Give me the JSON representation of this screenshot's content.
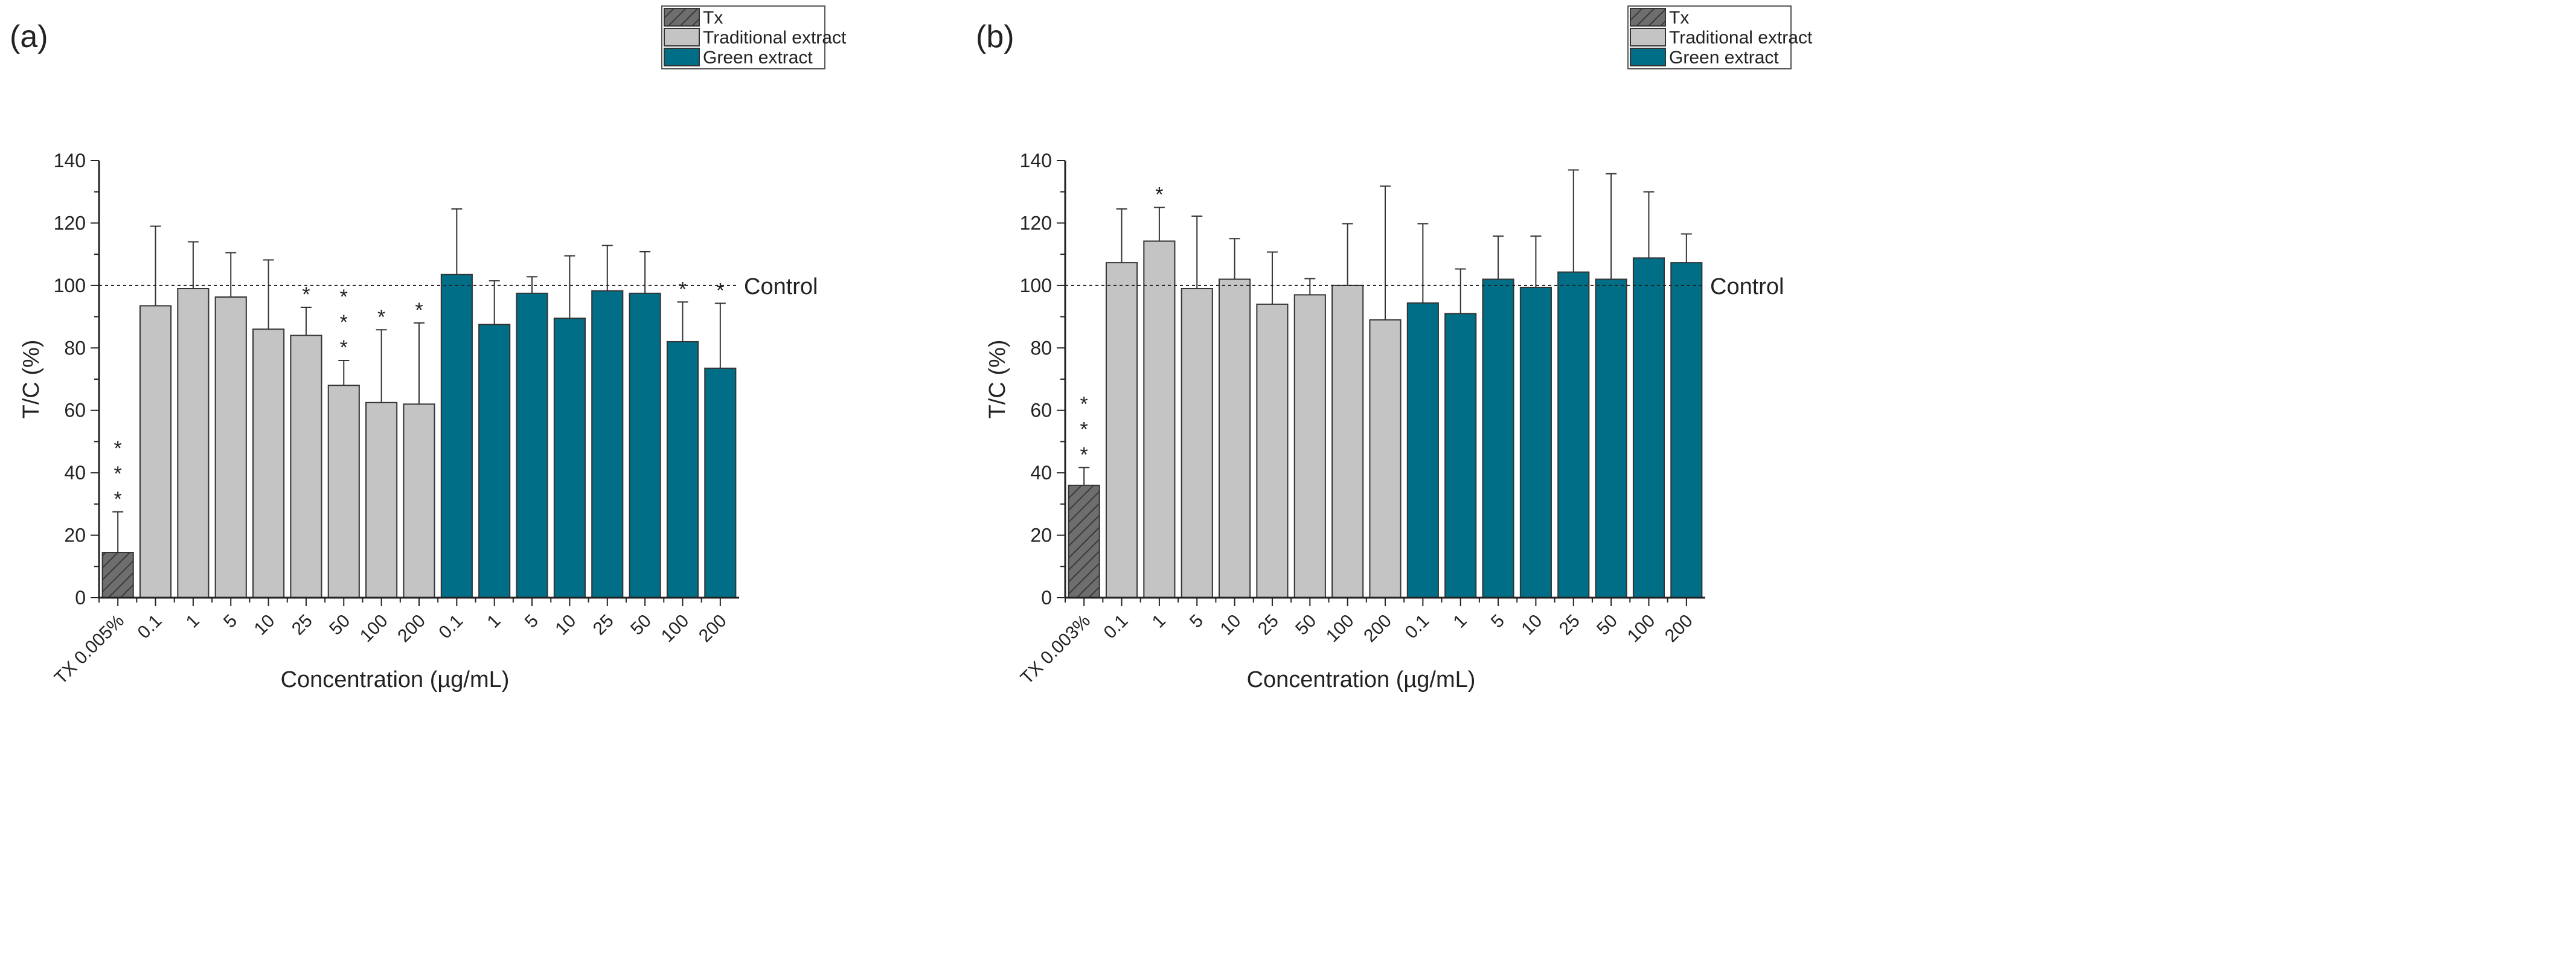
{
  "colors": {
    "tx": "#6e6e6e",
    "traditional": "#c4c4c4",
    "green": "#006e87",
    "axis": "#222222"
  },
  "chart_data": [
    {
      "type": "bar",
      "panel_label": "(a)",
      "xlabel": "Concentration (µg/mL)",
      "ylabel": "T/C (%)",
      "ylim": [
        0,
        140
      ],
      "yticks": [
        "0",
        "20",
        "40",
        "60",
        "80",
        "100",
        "120",
        "140"
      ],
      "reference_line": {
        "value": 100,
        "label": "Control"
      },
      "legend": {
        "position": "top-right",
        "entries": [
          "Tx",
          "Traditional extract",
          "Green extract"
        ]
      },
      "categories": [
        "TX 0.005%",
        "0.1",
        "1",
        "5",
        "10",
        "25",
        "50",
        "100",
        "200",
        "0.1",
        "1",
        "5",
        "10",
        "25",
        "50",
        "100",
        "200"
      ],
      "groups": [
        "tx",
        "traditional",
        "traditional",
        "traditional",
        "traditional",
        "traditional",
        "traditional",
        "traditional",
        "traditional",
        "green",
        "green",
        "green",
        "green",
        "green",
        "green",
        "green",
        "green"
      ],
      "values": [
        14.5,
        93.5,
        99,
        96.3,
        86,
        84,
        68,
        62.5,
        62,
        103.5,
        87.5,
        97.5,
        89.5,
        98.3,
        97.5,
        82,
        73.5
      ],
      "error_upper": [
        27.5,
        119,
        114,
        110.5,
        108.2,
        93,
        76,
        85.8,
        88,
        124.5,
        101.5,
        102.8,
        109.5,
        112.8,
        110.8,
        94.7,
        94.3
      ],
      "significance": [
        "***",
        "",
        "",
        "",
        "",
        "*",
        "***",
        "*",
        "*",
        "",
        "",
        "",
        "",
        "",
        "",
        "*",
        "*"
      ]
    },
    {
      "type": "bar",
      "panel_label": "(b)",
      "xlabel": "Concentration (µg/mL)",
      "ylabel": "T/C (%)",
      "ylim": [
        0,
        140
      ],
      "yticks": [
        "0",
        "20",
        "40",
        "60",
        "80",
        "100",
        "120",
        "140"
      ],
      "reference_line": {
        "value": 100,
        "label": "Control"
      },
      "legend": {
        "position": "top-right",
        "entries": [
          "Tx",
          "Traditional extract",
          "Green extract"
        ]
      },
      "categories": [
        "TX 0.003%",
        "0.1",
        "1",
        "5",
        "10",
        "25",
        "50",
        "100",
        "200",
        "0.1",
        "1",
        "5",
        "10",
        "25",
        "50",
        "100",
        "200"
      ],
      "groups": [
        "tx",
        "traditional",
        "traditional",
        "traditional",
        "traditional",
        "traditional",
        "traditional",
        "traditional",
        "traditional",
        "green",
        "green",
        "green",
        "green",
        "green",
        "green",
        "green",
        "green"
      ],
      "values": [
        36,
        107.3,
        114.2,
        99,
        102,
        94,
        97,
        100,
        89,
        94.4,
        91,
        102,
        99.4,
        104.3,
        102,
        108.8,
        107.3
      ],
      "error_upper": [
        41.7,
        124.5,
        125,
        122.2,
        115,
        110.7,
        102.2,
        119.8,
        131.8,
        119.8,
        105.3,
        115.8,
        115.8,
        137,
        135.8,
        130,
        116.5
      ],
      "significance": [
        "***",
        "",
        "*",
        "",
        "",
        "",
        "",
        "",
        "",
        "",
        "",
        "",
        "",
        "",
        "",
        "",
        ""
      ]
    }
  ]
}
